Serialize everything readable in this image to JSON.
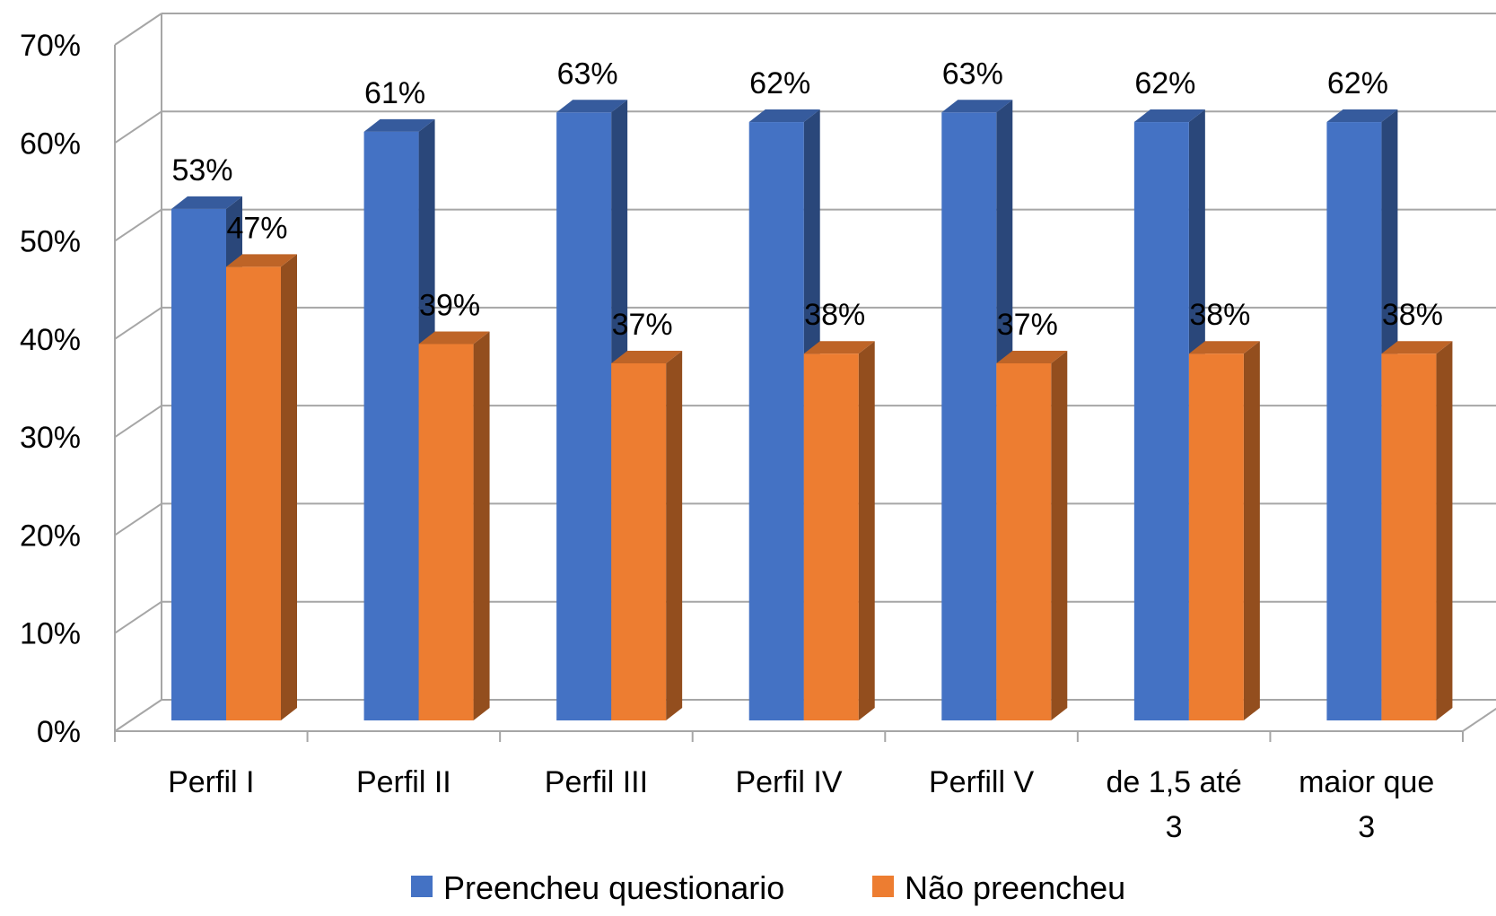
{
  "chart_data": {
    "type": "bar",
    "style": "3d-clustered-column",
    "categories": [
      "Perfil I",
      "Perfil II",
      "Perfil III",
      "Perfil IV",
      "Perfill V",
      "de 1,5 até 3",
      "maior que 3"
    ],
    "category_lines": [
      [
        "Perfil I"
      ],
      [
        "Perfil II"
      ],
      [
        "Perfil III"
      ],
      [
        "Perfil IV"
      ],
      [
        "Perfill V"
      ],
      [
        "de 1,5 até",
        "3"
      ],
      [
        "maior que",
        "3"
      ]
    ],
    "series": [
      {
        "name": "Preencheu questionario",
        "values": [
          53,
          61,
          63,
          62,
          63,
          62,
          62
        ],
        "labels": [
          "53%",
          "61%",
          "63%",
          "62%",
          "63%",
          "62%",
          "62%"
        ],
        "color": "#4472C4"
      },
      {
        "name": "Não preencheu",
        "values": [
          47,
          39,
          37,
          38,
          37,
          38,
          38
        ],
        "labels": [
          "47%",
          "39%",
          "37%",
          "38%",
          "37%",
          "38%",
          "38%"
        ],
        "color": "#ED7D31"
      }
    ],
    "ylim": [
      0,
      70
    ],
    "yticks": [
      0,
      10,
      20,
      30,
      40,
      50,
      60,
      70
    ],
    "ytick_labels": [
      "0%",
      "10%",
      "20%",
      "30%",
      "40%",
      "50%",
      "60%",
      "70%"
    ],
    "grid": true,
    "legend_position": "bottom",
    "title": "",
    "xlabel": "",
    "ylabel": ""
  }
}
